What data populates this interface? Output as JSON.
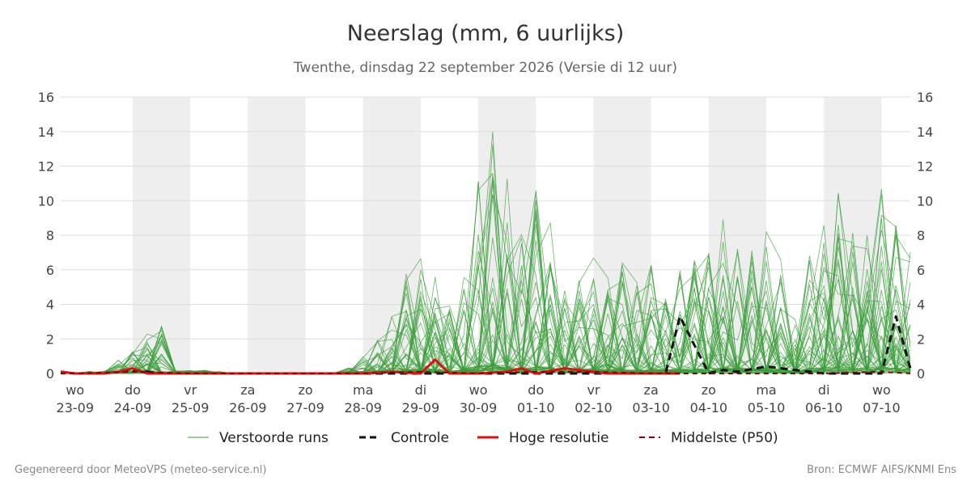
{
  "chart_data": {
    "type": "line",
    "title": "Neerslag (mm, 6 uurlijks)",
    "subtitle": "Twenthe, dinsdag 22 september 2026 (Versie di 12 uur)",
    "ylim": [
      0,
      16
    ],
    "yticks": [
      0,
      2,
      4,
      6,
      8,
      10,
      12,
      14,
      16
    ],
    "xlim": [
      -0.25,
      14.5
    ],
    "shaded_days": [
      1,
      3,
      5,
      7,
      9,
      11,
      13
    ],
    "day_labels": [
      {
        "day": "wo",
        "date": "23-09"
      },
      {
        "day": "do",
        "date": "24-09"
      },
      {
        "day": "vr",
        "date": "25-09"
      },
      {
        "day": "za",
        "date": "26-09"
      },
      {
        "day": "zo",
        "date": "27-09"
      },
      {
        "day": "ma",
        "date": "28-09"
      },
      {
        "day": "di",
        "date": "29-09"
      },
      {
        "day": "wo",
        "date": "30-09"
      },
      {
        "day": "do",
        "date": "01-10"
      },
      {
        "day": "vr",
        "date": "02-10"
      },
      {
        "day": "za",
        "date": "03-10"
      },
      {
        "day": "zo",
        "date": "04-10"
      },
      {
        "day": "ma",
        "date": "05-10"
      },
      {
        "day": "di",
        "date": "06-10"
      },
      {
        "day": "wo",
        "date": "07-10"
      }
    ],
    "legend": {
      "ensemble": "Verstoorde runs",
      "control": "Controle",
      "highres": "Hoge resolutie",
      "median": "Middelste (P50)"
    },
    "colors": {
      "ensemble": "#3a9e3a",
      "control": "#111111",
      "highres": "#dd1111",
      "median": "#8b0000",
      "shade": "#eeeeee",
      "grid": "#dddddd"
    },
    "series": [
      {
        "kind": "control",
        "x": [
          -0.25,
          0,
          0.5,
          1,
          1.5,
          2,
          3,
          4,
          5,
          6,
          7,
          8,
          9,
          9.5,
          10,
          10.25,
          10.5,
          11,
          11.25,
          11.5,
          12,
          13,
          13.5,
          14,
          14.25,
          14.5
        ],
        "y": [
          0.1,
          0,
          0,
          0.2,
          0,
          0,
          0,
          0,
          0,
          0,
          0,
          0,
          0,
          0,
          0,
          0,
          3.3,
          0,
          0.2,
          0.1,
          0.4,
          0,
          0,
          0,
          3.3,
          0.3
        ]
      },
      {
        "kind": "highres",
        "x": [
          -0.25,
          0,
          0.5,
          0.75,
          1,
          1.25,
          1.5,
          2,
          3,
          4,
          5,
          5.5,
          6,
          6.25,
          6.5,
          7,
          7.5,
          7.75,
          8,
          8.5,
          9,
          9.25,
          9.5,
          10,
          10.25,
          10.5
        ],
        "y": [
          0.1,
          0,
          0,
          0.1,
          0.3,
          0,
          0,
          0,
          0,
          0,
          0,
          0.1,
          0,
          0.8,
          0,
          0,
          0.1,
          0.3,
          0,
          0.3,
          0.1,
          0,
          0,
          0,
          0,
          0
        ]
      },
      {
        "kind": "median",
        "x": [
          -0.25,
          0,
          1,
          2,
          3,
          4,
          5,
          6,
          7,
          8,
          9,
          10,
          11,
          12,
          13,
          14,
          14.5
        ],
        "y": [
          0,
          0,
          0.1,
          0,
          0,
          0,
          0,
          0.1,
          0,
          0.1,
          0.1,
          0,
          0,
          0,
          0,
          0.1,
          0
        ]
      }
    ],
    "footer_left": "Gegenereerd door MeteoVPS (meteo-service.nl)",
    "footer_right": "Bron: ECMWF AIFS/KNMI Ens"
  }
}
